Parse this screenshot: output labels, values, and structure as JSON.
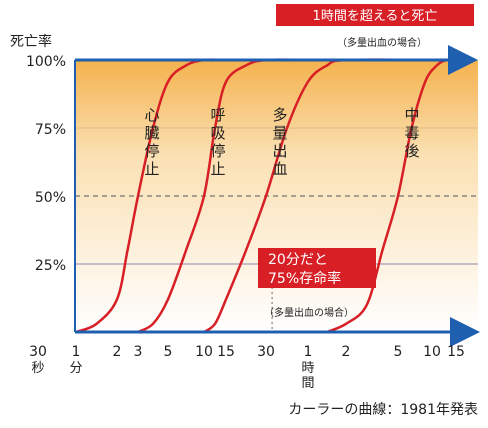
{
  "chart_data": {
    "type": "line",
    "title": "",
    "ylabel": "死亡率",
    "y_ticks": [
      "100%",
      "75%",
      "50%",
      "25%"
    ],
    "y_tick_values": [
      100,
      75,
      50,
      25
    ],
    "ylim": [
      0,
      100
    ],
    "x_ticks": [
      {
        "label": "30",
        "sub": "秒"
      },
      {
        "label": "1",
        "sub": "分"
      },
      {
        "label": "2",
        "sub": ""
      },
      {
        "label": "3",
        "sub": ""
      },
      {
        "label": "5",
        "sub": ""
      },
      {
        "label": "10",
        "sub": ""
      },
      {
        "label": "15",
        "sub": ""
      },
      {
        "label": "30",
        "sub": ""
      },
      {
        "label": "1",
        "sub": "時間"
      },
      {
        "label": "2",
        "sub": ""
      },
      {
        "label": "5",
        "sub": ""
      },
      {
        "label": "10",
        "sub": ""
      },
      {
        "label": "15",
        "sub": ""
      }
    ],
    "series": [
      {
        "name": "心臓停止",
        "midpoint_tick": 3.0,
        "points": [
          [
            1.0,
            0
          ],
          [
            1.5,
            3
          ],
          [
            2.0,
            12
          ],
          [
            2.5,
            30
          ],
          [
            3.0,
            50
          ],
          [
            3.5,
            75
          ],
          [
            4.0,
            92
          ],
          [
            4.5,
            98
          ],
          [
            5.0,
            100
          ],
          [
            6.0,
            100
          ]
        ]
      },
      {
        "name": "呼吸停止",
        "midpoint_tick": 5.0,
        "points": [
          [
            3.0,
            0
          ],
          [
            3.5,
            3
          ],
          [
            4.0,
            12
          ],
          [
            4.5,
            30
          ],
          [
            5.0,
            50
          ],
          [
            5.5,
            75
          ],
          [
            6.0,
            92
          ],
          [
            6.5,
            98
          ],
          [
            7.0,
            100
          ],
          [
            8.0,
            100
          ]
        ]
      },
      {
        "name": "多量出血",
        "midpoint_tick": 7.0,
        "points": [
          [
            5.0,
            0
          ],
          [
            5.5,
            3
          ],
          [
            6.0,
            12
          ],
          [
            6.5,
            30
          ],
          [
            7.0,
            50
          ],
          [
            7.5,
            75
          ],
          [
            8.0,
            92
          ],
          [
            8.5,
            98
          ],
          [
            9.0,
            100
          ],
          [
            11.0,
            100
          ]
        ]
      },
      {
        "name": "中毒後",
        "midpoint_tick": 10.0,
        "points": [
          [
            8.5,
            0
          ],
          [
            9.0,
            3
          ],
          [
            9.4,
            10
          ],
          [
            9.7,
            30
          ],
          [
            10.0,
            50
          ],
          [
            10.4,
            75
          ],
          [
            10.8,
            92
          ],
          [
            11.2,
            98
          ],
          [
            11.6,
            100
          ],
          [
            12.0,
            100
          ]
        ]
      }
    ],
    "annotations": {
      "top_box": "1時間を超えると死亡",
      "top_note": "（多量出血の場合）",
      "mid_box_line1": "20分だと",
      "mid_box_line2": "75%存命率",
      "mid_note": "（多量出血の場合）"
    },
    "caption": "カーラーの曲線：1981年発表",
    "colors": {
      "curve": "#d81f26",
      "axis": "#1f5fb0",
      "label_box": "#d81f26",
      "gradient_top": "#f4b24e",
      "gradient_bottom": "#ffffff",
      "gridline": "#555555"
    },
    "grid": true,
    "legend": "none"
  }
}
